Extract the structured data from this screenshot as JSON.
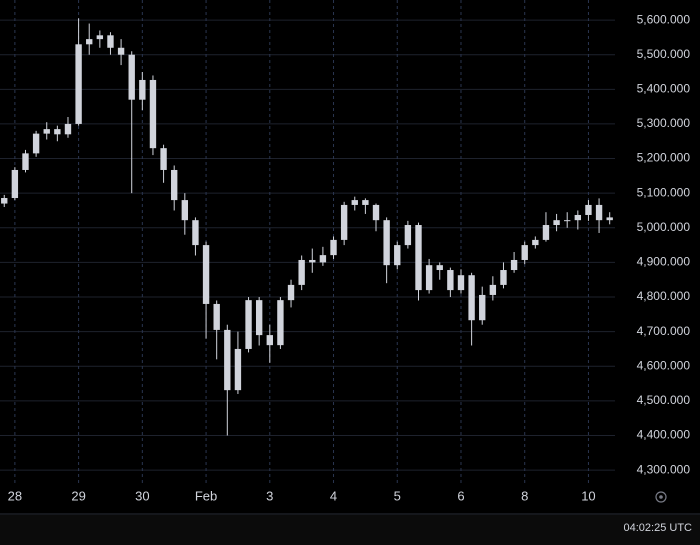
{
  "chart_data": {
    "type": "candlestick",
    "color": "#d1d4dc",
    "grid": true,
    "open": [
      5070,
      5086,
      5167,
      5215,
      5272,
      5285,
      5270,
      5300,
      5530,
      5545,
      5556,
      5520,
      5500,
      5370,
      5427,
      5230,
      5167,
      5080,
      5022,
      4950,
      4780,
      4705,
      4531,
      4650,
      4791,
      4690,
      4661,
      4791,
      4835,
      4907,
      4900,
      4921,
      4965,
      5066,
      5080,
      5066,
      5022,
      4892,
      4950,
      5008,
      4820,
      4892,
      4878,
      4820,
      4863,
      4733,
      4806,
      4835,
      4878,
      4907,
      4950,
      4965,
      5008,
      5022,
      5022,
      5037,
      5066,
      5022
    ],
    "high": [
      5095,
      5175,
      5225,
      5280,
      5305,
      5295,
      5320,
      5605,
      5590,
      5570,
      5565,
      5545,
      5510,
      5450,
      5440,
      5240,
      5180,
      5100,
      5030,
      4960,
      4790,
      4720,
      4700,
      4800,
      4800,
      4720,
      4800,
      4850,
      4920,
      4940,
      4945,
      4975,
      5075,
      5090,
      5085,
      5070,
      5030,
      4960,
      5020,
      5015,
      4910,
      4900,
      4885,
      4880,
      4870,
      4830,
      4860,
      4900,
      4930,
      4960,
      4975,
      5045,
      5040,
      5045,
      5050,
      5080,
      5085,
      5045
    ],
    "low": [
      5060,
      5080,
      5160,
      5205,
      5255,
      5250,
      5260,
      5295,
      5500,
      5520,
      5500,
      5470,
      5100,
      5340,
      5210,
      5130,
      5050,
      4980,
      4920,
      4680,
      4620,
      4400,
      4520,
      4640,
      4660,
      4610,
      4650,
      4770,
      4820,
      4870,
      4890,
      4910,
      4950,
      5050,
      5040,
      4990,
      4840,
      4880,
      4940,
      4790,
      4810,
      4850,
      4800,
      4810,
      4660,
      4720,
      4790,
      4825,
      4870,
      4895,
      4940,
      4960,
      4990,
      5000,
      4995,
      5020,
      4985,
      5010
    ],
    "close": [
      5086,
      5167,
      5215,
      5272,
      5285,
      5270,
      5300,
      5530,
      5545,
      5556,
      5520,
      5500,
      5370,
      5427,
      5230,
      5167,
      5080,
      5022,
      4950,
      4780,
      4705,
      4531,
      4650,
      4791,
      4690,
      4661,
      4791,
      4835,
      4907,
      4900,
      4921,
      4965,
      5066,
      5080,
      5066,
      5022,
      4892,
      4950,
      5008,
      4820,
      4892,
      4878,
      4820,
      4863,
      4733,
      4806,
      4835,
      4878,
      4907,
      4950,
      4965,
      5008,
      5022,
      5022,
      5037,
      5066,
      5022,
      5030
    ],
    "xlim": [
      -0.4,
      57.5
    ],
    "xticks": [
      {
        "value": 1,
        "label": "28"
      },
      {
        "value": 7,
        "label": "29"
      },
      {
        "value": 13,
        "label": "30"
      },
      {
        "value": 19,
        "label": "Feb"
      },
      {
        "value": 25,
        "label": "3"
      },
      {
        "value": 31,
        "label": "4"
      },
      {
        "value": 37,
        "label": "5"
      },
      {
        "value": 43,
        "label": "6"
      },
      {
        "value": 49,
        "label": "8"
      },
      {
        "value": 55,
        "label": "10"
      }
    ],
    "ylim": [
      4257,
      5658
    ],
    "yticks": [
      {
        "value": 4300,
        "label": "4,300.000"
      },
      {
        "value": 4400,
        "label": "4,400.000"
      },
      {
        "value": 4500,
        "label": "4,500.000"
      },
      {
        "value": 4600,
        "label": "4,600.000"
      },
      {
        "value": 4700,
        "label": "4,700.000"
      },
      {
        "value": 4800,
        "label": "4,800.000"
      },
      {
        "value": 4900,
        "label": "4,900.000"
      },
      {
        "value": 5000,
        "label": "5,000.000"
      },
      {
        "value": 5100,
        "label": "5,100.000"
      },
      {
        "value": 5200,
        "label": "5,200.000"
      },
      {
        "value": 5300,
        "label": "5,300.000"
      },
      {
        "value": 5400,
        "label": "5,400.000"
      },
      {
        "value": 5500,
        "label": "5,500.000"
      },
      {
        "value": 5600,
        "label": "5,600.000"
      }
    ],
    "time_label": "04:02:25 UTC"
  }
}
